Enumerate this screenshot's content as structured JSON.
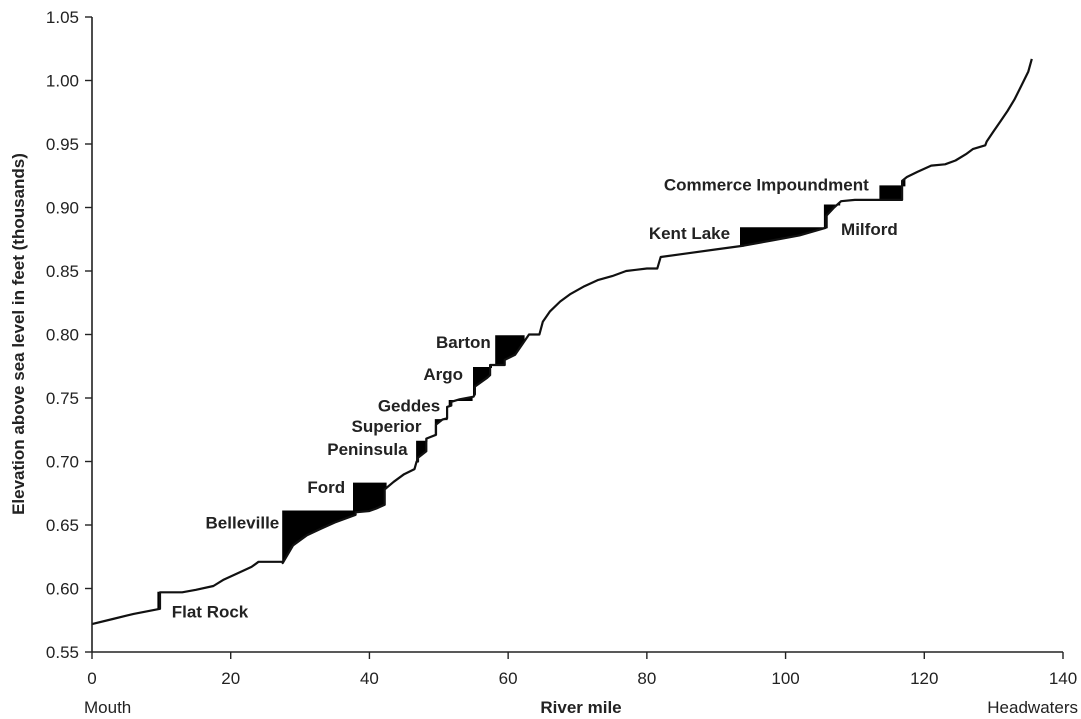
{
  "chart_data": {
    "type": "line",
    "title": "",
    "xlabel": "River mile",
    "ylabel": "Elevation above sea level in feet (thousands)",
    "xlim": [
      0,
      140
    ],
    "ylim": [
      0.55,
      1.05
    ],
    "x_ticks": [
      0,
      20,
      40,
      60,
      80,
      100,
      120,
      140
    ],
    "y_ticks": [
      "0.55",
      "0.60",
      "0.65",
      "0.70",
      "0.75",
      "0.80",
      "0.85",
      "0.90",
      "0.95",
      "1.00",
      "1.05"
    ],
    "x_end_labels": {
      "left": "Mouth",
      "right": "Headwaters"
    },
    "grid": false,
    "legend": "none",
    "series": [
      {
        "x": [
          0,
          3,
          6,
          9.8,
          9.8,
          13,
          15,
          17.5,
          19,
          21,
          23,
          24,
          27.5,
          27.5,
          29,
          31,
          33,
          35,
          38,
          38,
          40,
          41,
          42.2,
          42.2,
          43.5,
          45,
          46.5,
          46.8,
          47,
          47,
          48.2,
          48.2,
          49.6,
          49.6,
          50.5,
          51.2,
          51.2,
          51.8,
          51.8,
          53,
          55,
          55.2,
          55.2,
          57,
          57.4,
          57.4,
          58.5,
          59.5,
          59.5,
          61,
          62,
          63,
          64.5,
          65,
          66,
          67.5,
          69,
          71,
          73,
          75,
          77,
          80,
          81.5,
          82,
          86,
          90,
          94,
          98,
          102,
          105.8,
          105.8,
          107,
          108,
          110,
          113,
          116.8,
          116.8,
          117.5,
          119,
          121,
          123,
          124.5,
          126,
          127,
          128.8,
          129,
          130,
          131,
          132,
          133,
          134,
          135,
          135.5
        ],
        "y": [
          0.572,
          0.576,
          0.58,
          0.584,
          0.597,
          0.597,
          0.599,
          0.602,
          0.607,
          0.612,
          0.617,
          0.621,
          0.621,
          0.62,
          0.634,
          0.642,
          0.647,
          0.652,
          0.658,
          0.66,
          0.661,
          0.663,
          0.666,
          0.678,
          0.684,
          0.69,
          0.694,
          0.7,
          0.7,
          0.703,
          0.708,
          0.718,
          0.721,
          0.729,
          0.733,
          0.734,
          0.743,
          0.744,
          0.747,
          0.749,
          0.751,
          0.753,
          0.759,
          0.766,
          0.768,
          0.776,
          0.776,
          0.776,
          0.78,
          0.784,
          0.792,
          0.8,
          0.8,
          0.81,
          0.818,
          0.826,
          0.832,
          0.838,
          0.843,
          0.846,
          0.85,
          0.852,
          0.852,
          0.861,
          0.864,
          0.867,
          0.87,
          0.874,
          0.878,
          0.884,
          0.893,
          0.9,
          0.905,
          0.906,
          0.906,
          0.906,
          0.921,
          0.924,
          0.928,
          0.933,
          0.934,
          0.937,
          0.942,
          0.946,
          0.949,
          0.952,
          0.96,
          0.968,
          0.976,
          0.985,
          0.996,
          1.007,
          1.017
        ]
      }
    ],
    "impoundments": [
      {
        "name": "Flat Rock",
        "x0": 9.5,
        "x1": 10.1,
        "y_top": 0.597,
        "label_x": 11.5,
        "label_y": 0.582
      },
      {
        "name": "Belleville",
        "x0": 27.5,
        "x1": 38,
        "y_top": 0.661,
        "label_x": 27,
        "label_y": 0.652
      },
      {
        "name": "Ford",
        "x0": 37.7,
        "x1": 42.4,
        "y_top": 0.683,
        "label_x": 36.5,
        "label_y": 0.68
      },
      {
        "name": "Peninsula",
        "x0": 46.8,
        "x1": 48.3,
        "y_top": 0.716,
        "label_x": 45.5,
        "label_y": 0.71
      },
      {
        "name": "Superior",
        "x0": 49.5,
        "x1": 51.2,
        "y_top": 0.733,
        "label_x": 47.5,
        "label_y": 0.728
      },
      {
        "name": "Geddes",
        "x0": 51.5,
        "x1": 54.8,
        "y_top": 0.748,
        "label_x": 50.2,
        "label_y": 0.744
      },
      {
        "name": "Argo",
        "x0": 55,
        "x1": 57.6,
        "y_top": 0.774,
        "label_x": 53.5,
        "label_y": 0.769
      },
      {
        "name": "Barton",
        "x0": 58.2,
        "x1": 62.3,
        "y_top": 0.799,
        "label_x": 57.5,
        "label_y": 0.794
      },
      {
        "name": "Kent Lake",
        "x0": 93.5,
        "x1": 106,
        "y_top": 0.884,
        "label_x": 92,
        "label_y": 0.88
      },
      {
        "name": "Milford",
        "x0": 105.6,
        "x1": 107.8,
        "y_top": 0.902,
        "label_x": 108,
        "label_y": 0.883
      },
      {
        "name": "Commerce Impoundment",
        "x0": 113.6,
        "x1": 117.2,
        "y_top": 0.917,
        "label_x": 112,
        "label_y": 0.918
      }
    ]
  }
}
